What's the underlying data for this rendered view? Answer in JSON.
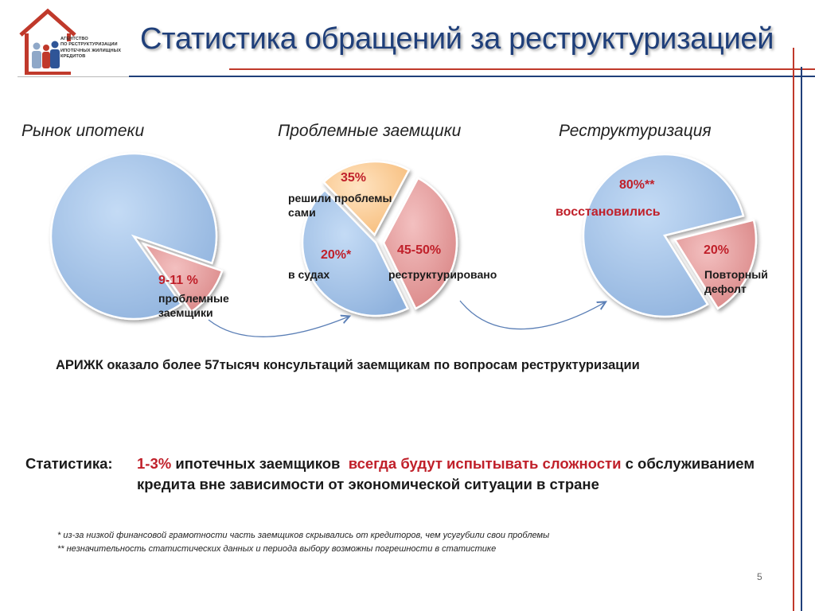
{
  "header": {
    "title": "Статистика обращений за реструктуризацией",
    "logo_lines": [
      "АГЕНТСТВО",
      "ПО РЕСТРУКТУРИЗАЦИИ",
      "ИПОТЕЧНЫХ ЖИЛИЩНЫХ",
      "КРЕДИТОВ"
    ]
  },
  "sections": {
    "market": "Рынок ипотеки",
    "problem": "Проблемные заемщики",
    "restructuring": "Реструктуризация"
  },
  "colors": {
    "title_blue": "#1f3f7a",
    "accent_red": "#c0202a",
    "pie_blue": "#a8c6ea",
    "pie_red": "#e8a0a0",
    "pie_orange": "#fcd3a0"
  },
  "labels": {
    "market_pct": "9-11 %",
    "market_text1": "проблемные",
    "market_text2": "заемщики",
    "solved_pct": "35%",
    "solved_text1": "решили проблемы",
    "solved_text2": "сами",
    "courts_pct": "20%*",
    "courts_text": "в судах",
    "restructured_pct": "45-50%",
    "restructured_text": "реструктурировано",
    "recovered_pct": "80%**",
    "recovered_text": "восстановились",
    "redefault_pct": "20%",
    "redefault_text1": "Повторный",
    "redefault_text2": "дефолт"
  },
  "consultations": "АРИЖК оказало более 57тысяч  консультаций заемщикам по вопросам реструктуризации",
  "statistics": {
    "label": "Статистика:",
    "pct": "1-3%",
    "part1": "ипотечных заемщиков",
    "highlight": "всегда будут испытывать сложности",
    "part2": "с обслуживанием кредита вне зависимости от экономической ситуации в стране"
  },
  "footnotes": {
    "f1_mark": "*",
    "f1": "из-за низкой финансовой грамотности часть заемщиков скрывались от кредиторов, чем усугубили свои проблемы",
    "f2_mark": "**",
    "f2": "незначительность статистических данных и периода выбору возможны погрешности в статистике"
  },
  "page_number": "5",
  "chart_data": [
    {
      "type": "pie",
      "title": "Рынок ипотеки",
      "slices": [
        {
          "label": "",
          "value": 90,
          "color": "#a8c6ea"
        },
        {
          "label": "9-11 % проблемные заемщики",
          "value": 10,
          "color": "#e8a0a0",
          "exploded": true
        }
      ]
    },
    {
      "type": "pie",
      "title": "Проблемные заемщики",
      "slices": [
        {
          "label": "35% решили проблемы сами",
          "value": 35,
          "color": "#e8a0a0",
          "exploded": true
        },
        {
          "label": "45-50% реструктурировано",
          "value": 45,
          "color": "#a8c6ea"
        },
        {
          "label": "20%* в судах",
          "value": 20,
          "color": "#fcd3a0",
          "exploded": true
        }
      ]
    },
    {
      "type": "pie",
      "title": "Реструктуризация",
      "slices": [
        {
          "label": "80%** восстановились",
          "value": 80,
          "color": "#a8c6ea"
        },
        {
          "label": "20% Повторный дефолт",
          "value": 20,
          "color": "#e8a0a0",
          "exploded": true
        }
      ]
    }
  ]
}
